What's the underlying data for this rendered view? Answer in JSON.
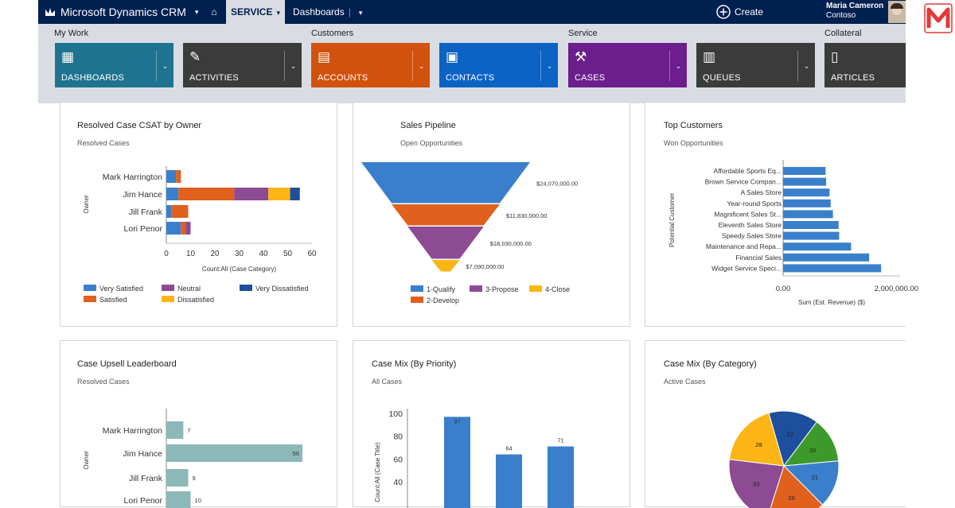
{
  "app": {
    "title": "Microsoft Dynamics CRM",
    "area": "SERVICE",
    "section": "Dashboards",
    "create": "Create",
    "user_name": "Maria Cameron",
    "user_org": "Contoso"
  },
  "groups": [
    "My Work",
    "Customers",
    "Service",
    "Collateral"
  ],
  "tiles": [
    {
      "label": "DASHBOARDS",
      "color": "#1e7490"
    },
    {
      "label": "ACTIVITIES",
      "color": "#3b3b3b"
    },
    {
      "label": "ACCOUNTS",
      "color": "#d2520d"
    },
    {
      "label": "CONTACTS",
      "color": "#0b63c4"
    },
    {
      "label": "CASES",
      "color": "#6b1e8c"
    },
    {
      "label": "QUEUES",
      "color": "#3b3b3b"
    },
    {
      "label": "ARTICLES",
      "color": "#3b3b3b"
    }
  ],
  "cards": [
    {
      "title": "Resolved Case CSAT by Owner",
      "subtitle": "Resolved Cases"
    },
    {
      "title": "Sales Pipeline",
      "subtitle": "Open Opportunities"
    },
    {
      "title": "Top Customers",
      "subtitle": "Won Opportunities"
    },
    {
      "title": "Case Upsell Leaderboard",
      "subtitle": "Resolved Cases"
    },
    {
      "title": "Case Mix (By Priority)",
      "subtitle": "All Cases"
    },
    {
      "title": "Case Mix (By Category)",
      "subtitle": "Active Cases"
    }
  ],
  "chart_data": [
    {
      "type": "bar",
      "orientation": "horizontal",
      "stacked": true,
      "categories": [
        "Mark Harrington",
        "Jim Hance",
        "Jill Frank",
        "Lori Penor"
      ],
      "ylabel": "Owner",
      "xlabel": "Count:All (Case Category)",
      "xlim": [
        0,
        60
      ],
      "xticks": [
        "0",
        "10",
        "20",
        "30",
        "40",
        "50",
        "60"
      ],
      "series": [
        {
          "name": "Very Satisfied",
          "color": "#3a7fcb",
          "values": [
            4,
            5,
            2,
            6
          ]
        },
        {
          "name": "Satisfied",
          "color": "#e0601d",
          "values": [
            2,
            23,
            7,
            2
          ]
        },
        {
          "name": "Neutral",
          "color": "#8c4b93",
          "values": [
            0,
            14,
            0,
            2
          ]
        },
        {
          "name": "Dissatisfied",
          "color": "#fbb515",
          "values": [
            0,
            9,
            0,
            0
          ]
        },
        {
          "name": "Very Dissatisfied",
          "color": "#1d4f9d",
          "values": [
            0,
            4,
            0,
            0
          ]
        }
      ]
    },
    {
      "type": "funnel",
      "categories": [
        "1-Qualify",
        "2-Develop",
        "3-Propose",
        "4-Close"
      ],
      "values": [
        24070000,
        11830000,
        18030000,
        7090000
      ],
      "labels": [
        "$24,070,000.00",
        "$11,830,000.00",
        "$18,030,000.00",
        "$7,090,000.00"
      ],
      "colors": [
        "#3a7fcb",
        "#e0601d",
        "#8c4b93",
        "#fbb515"
      ]
    },
    {
      "type": "bar",
      "orientation": "horizontal",
      "categories": [
        "Affordable Sports Eq...",
        "Brown Service Compan...",
        "A Sales Store",
        "Year-round Sports",
        "Magnificent Sales St...",
        "Eleventh Sales Store",
        "Speedy Sales Store",
        "Maintenance and Repa...",
        "Financial Sales",
        "Widget Service Speci..."
      ],
      "values": [
        750000,
        760000,
        820000,
        840000,
        880000,
        980000,
        990000,
        1200000,
        1520000,
        1730000
      ],
      "ylabel": "Potential Customer",
      "xlabel": "Sum (Est. Revenue) ($)",
      "xlim": [
        0,
        2600000
      ],
      "xticks": [
        {
          "v": 0,
          "label": "0.00"
        },
        {
          "v": 2000000,
          "label": "2,000,000.00"
        }
      ],
      "color": "#3a7fcb"
    },
    {
      "type": "bar",
      "orientation": "horizontal",
      "categories": [
        "Mark Harrington",
        "Jim Hance",
        "Jill Frank",
        "Lori Penor"
      ],
      "values": [
        7,
        56,
        9,
        10
      ],
      "value_labels": [
        "7",
        "56",
        "9",
        "10"
      ],
      "ylabel": "Owner",
      "xlim": [
        0,
        56
      ],
      "color": "#8cb8b8"
    },
    {
      "type": "bar",
      "values": [
        97,
        64,
        71
      ],
      "value_labels": [
        "97",
        "64",
        "71"
      ],
      "ylabel": "Count:All (Case Title)",
      "ylim": [
        0,
        100
      ],
      "yticks": [
        "40",
        "60",
        "80",
        "100"
      ],
      "color": "#3a7fcb"
    },
    {
      "type": "pie",
      "values": [
        22,
        20,
        21,
        26,
        33,
        28
      ],
      "value_labels": [
        "22",
        "20",
        "21",
        "26",
        "33",
        "28"
      ],
      "colors": [
        "#1d4f9d",
        "#3c9a2c",
        "#3a7fcb",
        "#e0601d",
        "#8c4b93",
        "#fbb515"
      ]
    }
  ]
}
